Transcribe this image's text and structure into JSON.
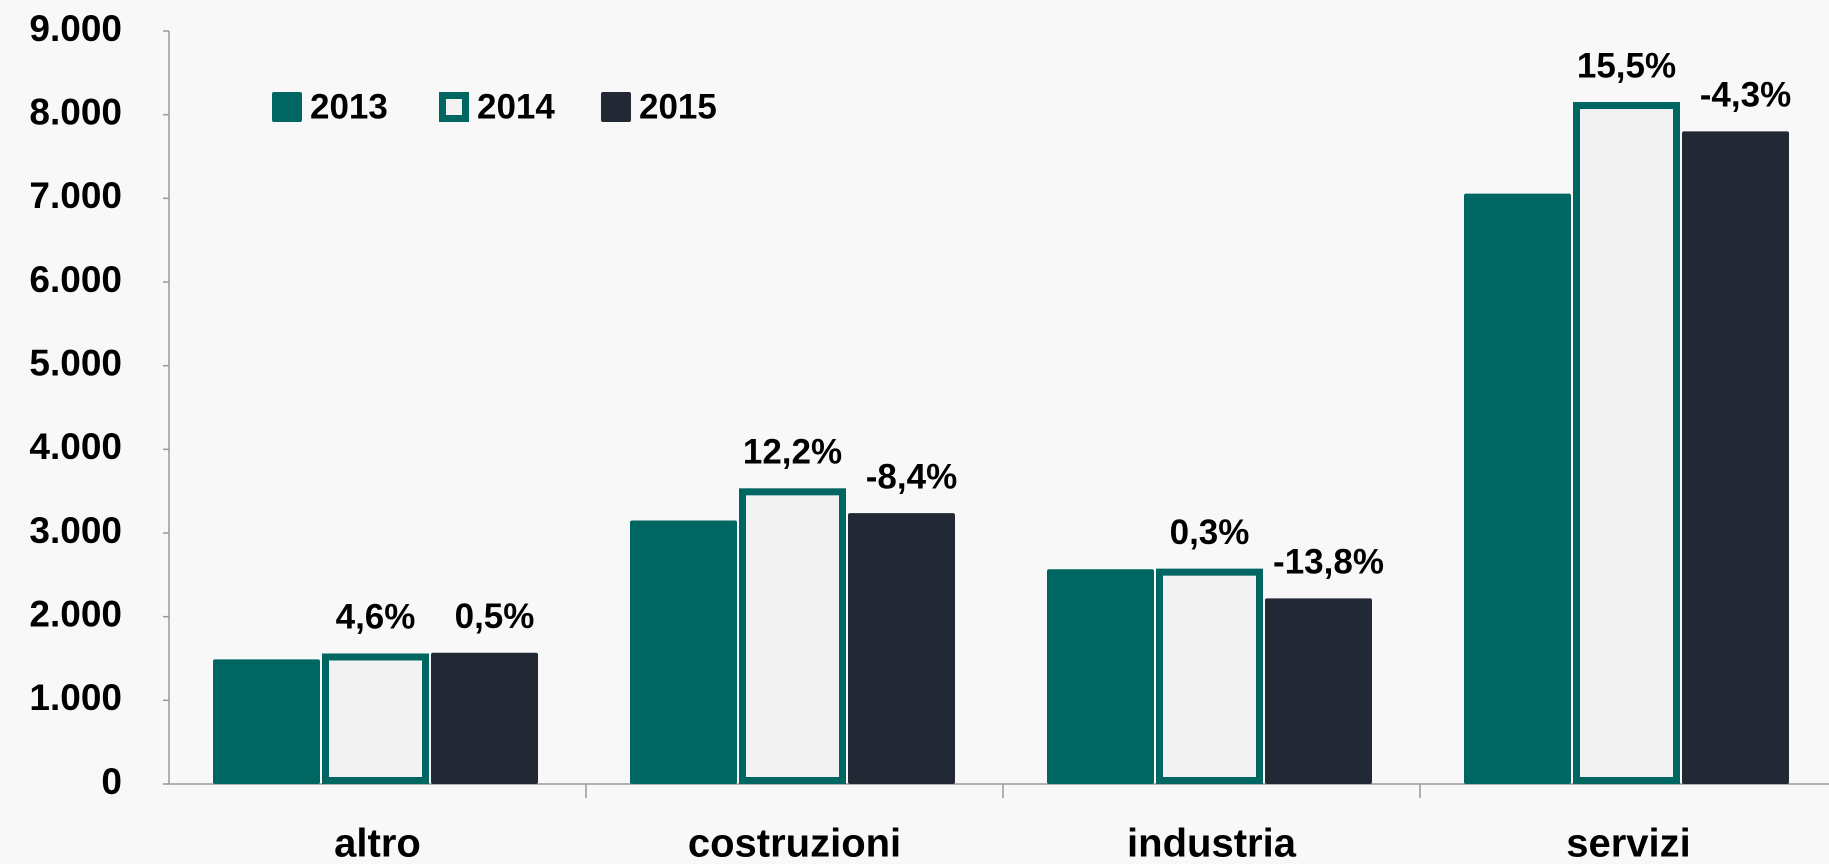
{
  "chart_data": {
    "type": "bar",
    "categories": [
      "altro",
      "costruzioni",
      "industria",
      "servizi"
    ],
    "series": [
      {
        "name": "2013",
        "color": "#006661",
        "values": [
          1490,
          3150,
          2566,
          7057
        ]
      },
      {
        "name": "2014",
        "color": "#f2f2f2",
        "edge": "#006661",
        "values": [
          1560,
          3534,
          2574,
          8151
        ],
        "labels": [
          "4,6%",
          "12,2%",
          "0,3%",
          "15,5%"
        ]
      },
      {
        "name": "2015",
        "color": "#222834",
        "values": [
          1568,
          3237,
          2219,
          7800
        ],
        "labels": [
          "0,5%",
          "-8,4%",
          "-13,8%",
          "-4,3%"
        ]
      }
    ],
    "ylim": [
      0,
      9000
    ],
    "yticks": [
      0,
      {
        "value": 1000,
        "label": "1.000"
      },
      {
        "value": 2000,
        "label": "2.000"
      },
      {
        "value": 3000,
        "label": "3.000"
      },
      {
        "value": 4000,
        "label": "4.000"
      },
      {
        "value": 5000,
        "label": "5.000"
      },
      {
        "value": 6000,
        "label": "6.000"
      },
      {
        "value": 7000,
        "label": "7.000"
      },
      {
        "value": 8000,
        "label": "8.000"
      },
      {
        "value": 9000,
        "label": "9.000"
      }
    ],
    "grid": false,
    "legend": "top-left"
  }
}
